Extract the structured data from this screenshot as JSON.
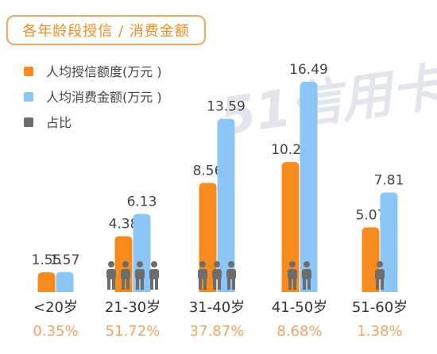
{
  "title": "各年龄段授信 / 消费金额",
  "watermark": "51信用卡",
  "colors": {
    "credit": "#f78b1e",
    "spending": "#8cc6f7",
    "people": "#6d6d6d",
    "share_text": "#f5a45f",
    "title": "#f28c1e"
  },
  "chart_data": {
    "type": "bar",
    "title": "各年龄段授信 / 消费金额",
    "categories": [
      "<20岁",
      "21-30岁",
      "31-40岁",
      "41-50岁",
      "51-60岁"
    ],
    "series": [
      {
        "name": "人均授信额度(万元 )",
        "values": [
          1.55,
          4.38,
          8.56,
          10.2,
          5.07
        ]
      },
      {
        "name": "人均消费金额(万元 )",
        "values": [
          1.57,
          6.13,
          13.59,
          16.49,
          7.81
        ]
      }
    ],
    "value_labels": [
      [
        "1.55",
        "4.38",
        "8.56",
        "10.20",
        "5.07"
      ],
      [
        "1.57",
        "6.13",
        "13.59",
        "16.49",
        "7.81"
      ]
    ],
    "share": {
      "name": "占比",
      "labels": [
        "0.35%",
        "51.72%",
        "37.87%",
        "8.68%",
        "1.38%"
      ],
      "person_icons": [
        0,
        4,
        3,
        2,
        1
      ]
    },
    "ylim": [
      0,
      17.5
    ],
    "legend_position": "top-left",
    "grid": false
  }
}
